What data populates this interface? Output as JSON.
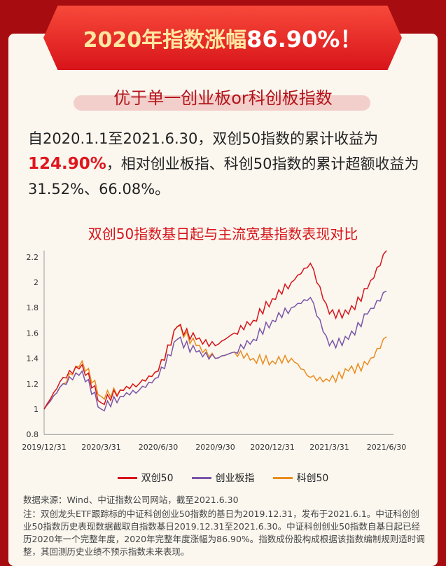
{
  "banner": {
    "prefix": "2020年指数涨幅",
    "value": "86.90%！"
  },
  "subtitle": "优于单一创业板or科创板指数",
  "summary": {
    "p1": "自2020.1.1至2021.6.30，双创50指数的累计收益为",
    "highlight": "124.90%",
    "p2": "，相对创业板指、科创50指数的累计超额收益为31.52%、66.08%。"
  },
  "chart_data": {
    "type": "line",
    "title": "双创50指数基日起与主流宽基指数表现对比",
    "x": [
      "2019/12/31",
      "2020/1/31",
      "2020/2/29",
      "2020/3/31",
      "2020/4/30",
      "2020/5/31",
      "2020/6/30",
      "2020/7/31",
      "2020/8/31",
      "2020/9/30",
      "2020/10/31",
      "2020/11/30",
      "2020/12/31",
      "2021/1/31",
      "2021/2/28",
      "2021/3/31",
      "2021/4/30",
      "2021/5/31",
      "2021/6/30"
    ],
    "xticks": [
      "2019/12/31",
      "2020/3/31",
      "2020/6/30",
      "2020/9/30",
      "2020/12/31",
      "2021/3/31",
      "2021/6/30"
    ],
    "yticks": [
      "0.8",
      "1",
      "1.2",
      "1.4",
      "1.6",
      "1.8",
      "2",
      "2.2"
    ],
    "ylim": [
      0.8,
      2.25
    ],
    "series": [
      {
        "name": "双创50",
        "color": "#d7141a",
        "values": [
          1.0,
          1.25,
          1.35,
          1.05,
          1.15,
          1.2,
          1.3,
          1.65,
          1.55,
          1.5,
          1.6,
          1.7,
          1.87,
          2.0,
          2.15,
          1.75,
          1.75,
          1.95,
          2.25
        ]
      },
      {
        "name": "创业板指",
        "color": "#7a55a8",
        "values": [
          1.0,
          1.2,
          1.3,
          1.0,
          1.1,
          1.15,
          1.25,
          1.55,
          1.45,
          1.4,
          1.45,
          1.55,
          1.7,
          1.8,
          1.88,
          1.5,
          1.55,
          1.75,
          1.93
        ]
      },
      {
        "name": "科创50",
        "color": "#ea8c1e",
        "values": [
          1.0,
          1.2,
          1.38,
          1.1,
          1.15,
          1.2,
          1.3,
          1.65,
          1.5,
          1.4,
          1.45,
          1.4,
          1.38,
          1.4,
          1.25,
          1.22,
          1.3,
          1.35,
          1.57
        ]
      }
    ]
  },
  "source": "数据来源：Wind、中证指数公司网站，截至2021.6.30",
  "note": "注：双创龙头ETF跟踪标的中证科创创业50指数的基日为2019.12.31，发布于2021.6.1。中证科创创业50指数历史表现数据截取自指数基日2019.12.31至2021.6.30。中证科创创业50指数自基日起已经历2020年一个完整年度，2020年完整年度涨幅为86.90%。指数成份股构成根据该指数编制规则适时调整，其回测历史业绩不预示指数未来表现。"
}
